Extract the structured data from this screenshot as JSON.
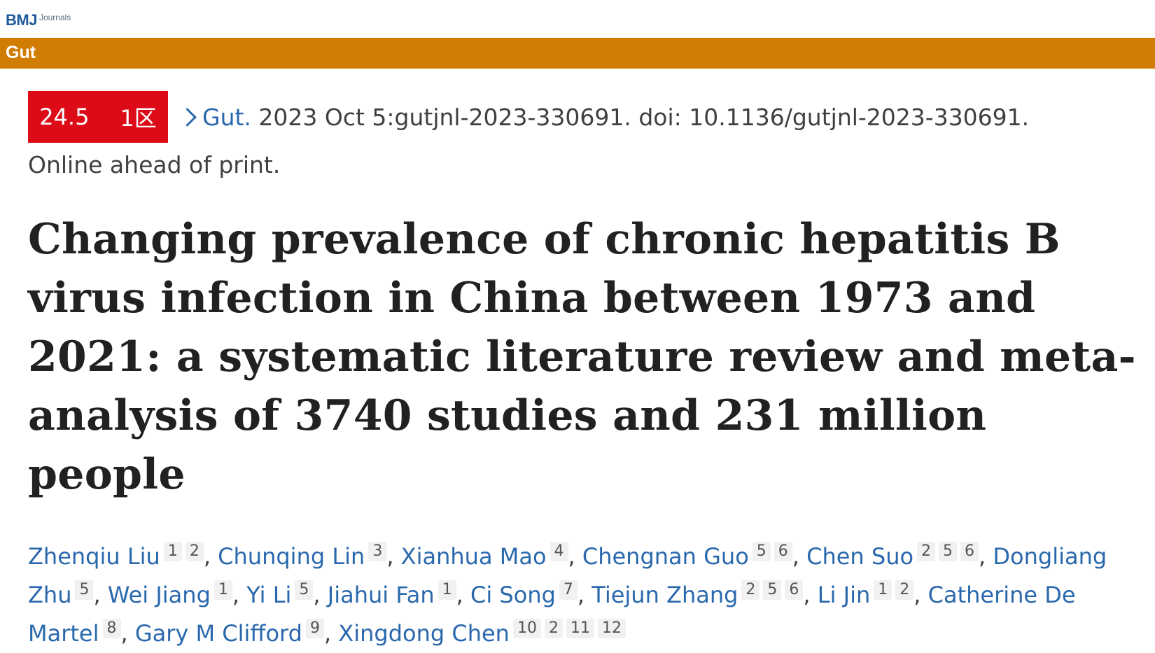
{
  "header": {
    "logo_main": "BMJ",
    "logo_sub": "Journals",
    "journal_name": "Gut"
  },
  "colors": {
    "brand_bar": "#d17c03",
    "badge": "#dd0b18",
    "link": "#2a68ad"
  },
  "citation": {
    "impact_factor": "24.5",
    "zone": "1区",
    "journal_link": "Gut.",
    "details": " 2023 Oct 5:gutjnl-2023-330691. doi: 10.1136/gutjnl-2023-330691.",
    "status": "Online ahead of print."
  },
  "article": {
    "title": "Changing prevalence of chronic hepatitis B virus infection in China between 1973 and 2021: a systematic literature review and meta-analysis of 3740 studies and 231 million people"
  },
  "authors": [
    {
      "name": "Zhenqiu Liu",
      "affiliations": [
        "1",
        "2"
      ]
    },
    {
      "name": "Chunqing Lin",
      "affiliations": [
        "3"
      ]
    },
    {
      "name": "Xianhua Mao",
      "affiliations": [
        "4"
      ]
    },
    {
      "name": "Chengnan Guo",
      "affiliations": [
        "5",
        "6"
      ]
    },
    {
      "name": "Chen Suo",
      "affiliations": [
        "2",
        "5",
        "6"
      ]
    },
    {
      "name": "Dongliang Zhu",
      "affiliations": [
        "5"
      ]
    },
    {
      "name": "Wei Jiang",
      "affiliations": [
        "1"
      ]
    },
    {
      "name": "Yi Li",
      "affiliations": [
        "5"
      ]
    },
    {
      "name": "Jiahui Fan",
      "affiliations": [
        "1"
      ]
    },
    {
      "name": "Ci Song",
      "affiliations": [
        "7"
      ]
    },
    {
      "name": "Tiejun Zhang",
      "affiliations": [
        "2",
        "5",
        "6"
      ]
    },
    {
      "name": "Li Jin",
      "affiliations": [
        "1",
        "2"
      ]
    },
    {
      "name": "Catherine De Martel",
      "affiliations": [
        "8"
      ]
    },
    {
      "name": "Gary M Clifford",
      "affiliations": [
        "9"
      ]
    },
    {
      "name": "Xingdong Chen",
      "affiliations": [
        "10",
        "2",
        "11",
        "12"
      ]
    }
  ]
}
